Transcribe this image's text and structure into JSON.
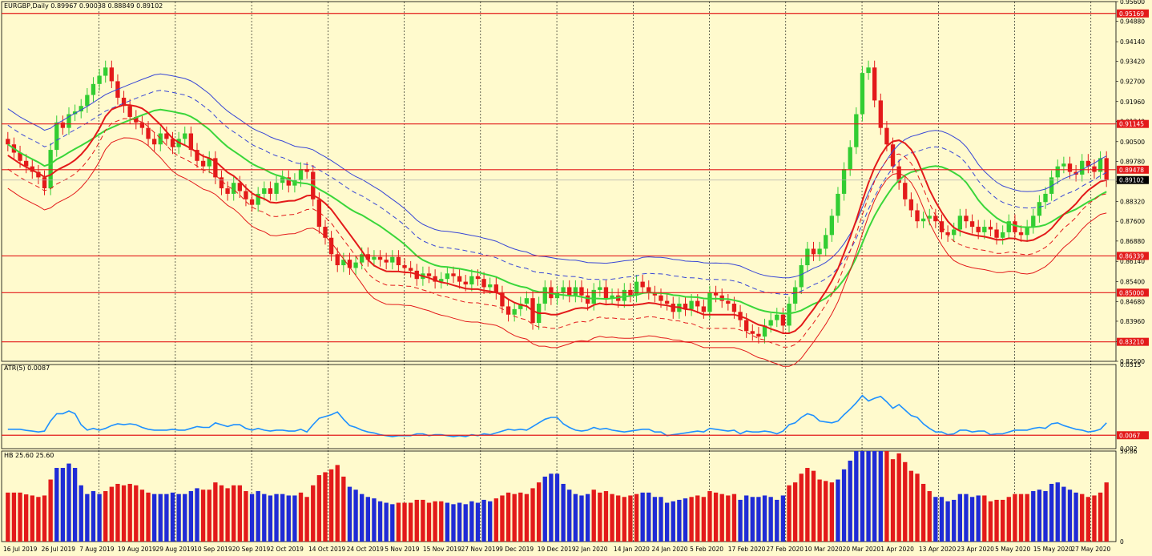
{
  "chart_data": [
    {
      "type": "candlestick",
      "title": "EURGBP,Daily  0.89967 0.90038 0.88849 0.89102",
      "ylim": [
        0.825,
        0.956
      ],
      "y_ticks": [
        "0.95600",
        "0.94880",
        "0.94140",
        "0.93420",
        "0.92700",
        "0.91960",
        "0.91240",
        "0.90500",
        "0.89780",
        "0.89060",
        "0.88320",
        "0.87600",
        "0.86880",
        "0.86140",
        "0.85400",
        "0.84680",
        "0.83960",
        "0.83220",
        "0.82500"
      ],
      "horizontal_levels": [
        {
          "value": 0.95169,
          "label": "0.95169"
        },
        {
          "value": 0.91145,
          "label": "0.91145"
        },
        {
          "value": 0.89478,
          "label": "0.89478"
        },
        {
          "value": 0.86339,
          "label": "0.86339"
        },
        {
          "value": 0.85,
          "label": "0.85000"
        },
        {
          "value": 0.8321,
          "label": "0.83210"
        }
      ],
      "current_price": {
        "value": 0.89102,
        "label": "0.89102"
      },
      "x_labels": [
        "16 Jul 2019",
        "26 Jul 2019",
        "7 Aug 2019",
        "19 Aug 2019",
        "29 Aug 2019",
        "10 Sep 2019",
        "20 Sep 2019",
        "2 Oct 2019",
        "14 Oct 2019",
        "24 Oct 2019",
        "5 Nov 2019",
        "15 Nov 2019",
        "27 Nov 2019",
        "9 Dec 2019",
        "19 Dec 2019",
        "2 Jan 2020",
        "14 Jan 2020",
        "24 Jan 2020",
        "5 Feb 2020",
        "17 Feb 2020",
        "27 Feb 2020",
        "10 Mar 2020",
        "20 Mar 2020",
        "1 Apr 2020",
        "13 Apr 2020",
        "23 Apr 2020",
        "5 May 2020",
        "15 May 2020",
        "27 May 2020"
      ],
      "series": [
        {
          "name": "Close",
          "values": [
            0.904,
            0.901,
            0.898,
            0.896,
            0.894,
            0.892,
            0.888,
            0.902,
            0.912,
            0.91,
            0.915,
            0.916,
            0.918,
            0.922,
            0.926,
            0.929,
            0.932,
            0.927,
            0.921,
            0.918,
            0.914,
            0.912,
            0.91,
            0.906,
            0.904,
            0.908,
            0.906,
            0.903,
            0.906,
            0.908,
            0.902,
            0.898,
            0.896,
            0.899,
            0.892,
            0.888,
            0.886,
            0.89,
            0.887,
            0.884,
            0.882,
            0.886,
            0.888,
            0.886,
            0.89,
            0.892,
            0.889,
            0.891,
            0.895,
            0.894,
            0.884,
            0.874,
            0.87,
            0.864,
            0.86,
            0.862,
            0.859,
            0.861,
            0.864,
            0.862,
            0.863,
            0.862,
            0.861,
            0.863,
            0.86,
            0.859,
            0.858,
            0.855,
            0.857,
            0.856,
            0.854,
            0.855,
            0.857,
            0.856,
            0.854,
            0.853,
            0.856,
            0.855,
            0.852,
            0.853,
            0.85,
            0.845,
            0.842,
            0.844,
            0.846,
            0.848,
            0.839,
            0.846,
            0.852,
            0.848,
            0.85,
            0.852,
            0.849,
            0.852,
            0.849,
            0.846,
            0.851,
            0.852,
            0.848,
            0.849,
            0.847,
            0.851,
            0.849,
            0.854,
            0.852,
            0.85,
            0.849,
            0.847,
            0.846,
            0.843,
            0.846,
            0.844,
            0.847,
            0.845,
            0.843,
            0.85,
            0.849,
            0.847,
            0.846,
            0.843,
            0.84,
            0.836,
            0.835,
            0.834,
            0.838,
            0.84,
            0.842,
            0.838,
            0.846,
            0.852,
            0.86,
            0.866,
            0.864,
            0.866,
            0.871,
            0.878,
            0.886,
            0.895,
            0.903,
            0.915,
            0.93,
            0.932,
            0.92,
            0.91,
            0.904,
            0.896,
            0.89,
            0.884,
            0.88,
            0.876,
            0.877,
            0.878,
            0.876,
            0.872,
            0.871,
            0.873,
            0.878,
            0.876,
            0.874,
            0.872,
            0.874,
            0.873,
            0.87,
            0.872,
            0.876,
            0.872,
            0.871,
            0.874,
            0.878,
            0.883,
            0.886,
            0.892,
            0.896,
            0.897,
            0.894,
            0.893,
            0.898,
            0.896,
            0.894,
            0.899,
            0.891
          ]
        },
        {
          "name": "MA middle (green)",
          "values": []
        },
        {
          "name": "MA inner (red)",
          "values": []
        },
        {
          "name": "Envelope outer (blue)",
          "values": []
        }
      ],
      "grid": true
    },
    {
      "type": "line",
      "title": "ATR(5) 0.0087",
      "ylim": [
        0.002,
        0.0315
      ],
      "y_ticks": [
        "0.0315",
        "0.002"
      ],
      "horizontal_levels": [
        {
          "value": 0.0067,
          "label": "0.0067"
        }
      ],
      "series": [
        {
          "name": "ATR(5)",
          "values": []
        }
      ]
    },
    {
      "type": "bar",
      "title": "HB 25.60 25.60",
      "ylim": [
        0,
        59.86
      ],
      "y_ticks": [
        "59.86",
        "0"
      ],
      "series": [
        {
          "name": "HB",
          "values": []
        }
      ]
    }
  ],
  "colors": {
    "background": "#fffacd",
    "bull": "#32cd32",
    "bear": "#e31a1a",
    "level": "#e31a1a",
    "atr": "#1e90ff",
    "hb_red": "#e31a1a",
    "hb_blue": "#1f2bd6",
    "ma_green": "#3ad63a",
    "ma_red": "#e31a1a",
    "envelope_blue": "#3846d6"
  }
}
